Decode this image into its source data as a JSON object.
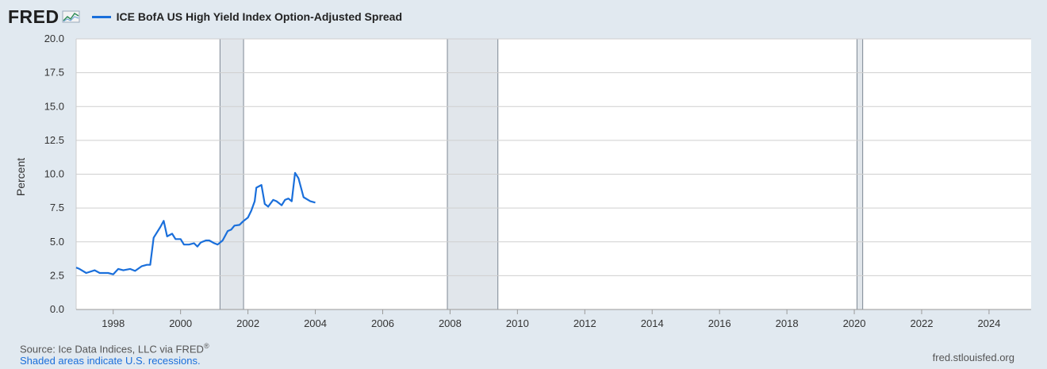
{
  "header": {
    "logo_text": "FRED",
    "logo_icon": "chart-trend-icon",
    "series_title": "ICE BofA US High Yield Index Option-Adjusted Spread"
  },
  "colors": {
    "background": "#e1e9f0",
    "plot_background": "#ffffff",
    "series": "#1a6fdb",
    "recession": "#e1e6eb",
    "grid": "#cfcfcf"
  },
  "footer": {
    "source_prefix": "Source: Ice Data Indices, LLC via FRED",
    "source_mark": "®",
    "recession_note": "Shaded areas indicate U.S. recessions.",
    "site": "fred.stlouisfed.org"
  },
  "chart_data": {
    "type": "line",
    "title": "ICE BofA US High Yield Index Option-Adjusted Spread",
    "xlabel": "",
    "ylabel": "Percent",
    "xlim": [
      1996.9,
      2025.25
    ],
    "ylim": [
      0,
      20
    ],
    "grid": true,
    "legend": "top-left",
    "x_ticks": [
      "1998",
      "2000",
      "2002",
      "2004",
      "2006",
      "2008",
      "2010",
      "2012",
      "2014",
      "2016",
      "2018",
      "2020",
      "2022",
      "2024"
    ],
    "y_ticks": [
      "0.0",
      "2.5",
      "5.0",
      "7.5",
      "10.0",
      "12.5",
      "15.0",
      "17.5",
      "20.0"
    ],
    "recessions": [
      {
        "start": 2001.17,
        "end": 2001.87
      },
      {
        "start": 2007.92,
        "end": 2009.42
      },
      {
        "start": 2020.08,
        "end": 2020.25
      }
    ],
    "series": [
      {
        "name": "ICE BofA US High Yield Index Option-Adjusted Spread",
        "points": [
          [
            1996.9,
            3.1
          ],
          [
            1997.0,
            3.0
          ],
          [
            1997.2,
            2.7
          ],
          [
            1997.45,
            2.9
          ],
          [
            1997.6,
            2.7
          ],
          [
            1997.85,
            2.7
          ],
          [
            1998.0,
            2.6
          ],
          [
            1998.15,
            3.0
          ],
          [
            1998.3,
            2.9
          ],
          [
            1998.5,
            3.0
          ],
          [
            1998.65,
            2.85
          ],
          [
            1998.85,
            3.2
          ],
          [
            1999.0,
            3.3
          ],
          [
            1999.1,
            3.3
          ],
          [
            1999.2,
            5.3
          ],
          [
            1999.4,
            6.1
          ],
          [
            1999.5,
            6.55
          ],
          [
            1999.6,
            5.4
          ],
          [
            1999.75,
            5.6
          ],
          [
            1999.85,
            5.2
          ],
          [
            2000.0,
            5.2
          ],
          [
            2000.1,
            4.8
          ],
          [
            2000.25,
            4.8
          ],
          [
            2000.4,
            4.9
          ],
          [
            2000.5,
            4.65
          ],
          [
            2000.6,
            4.95
          ],
          [
            2000.75,
            5.1
          ],
          [
            2000.85,
            5.1
          ],
          [
            2001.0,
            4.9
          ],
          [
            2001.1,
            4.8
          ],
          [
            2001.25,
            5.1
          ],
          [
            2001.4,
            5.8
          ],
          [
            2001.5,
            5.9
          ],
          [
            2001.6,
            6.2
          ],
          [
            2001.75,
            6.25
          ],
          [
            2001.85,
            6.5
          ],
          [
            2002.0,
            6.8
          ],
          [
            2002.1,
            7.3
          ],
          [
            2002.2,
            8.0
          ],
          [
            2002.25,
            9.0
          ],
          [
            2002.4,
            9.2
          ],
          [
            2002.5,
            7.8
          ],
          [
            2002.6,
            7.6
          ],
          [
            2002.75,
            8.1
          ],
          [
            2002.85,
            8.0
          ],
          [
            2003.0,
            7.7
          ],
          [
            2003.1,
            8.1
          ],
          [
            2003.2,
            8.2
          ],
          [
            2003.3,
            8.0
          ],
          [
            2003.4,
            10.1
          ],
          [
            2003.5,
            9.7
          ],
          [
            2003.65,
            8.3
          ],
          [
            2003.85,
            8.0
          ],
          [
            2004.0,
            7.9
          ]
        ]
      }
    ]
  }
}
